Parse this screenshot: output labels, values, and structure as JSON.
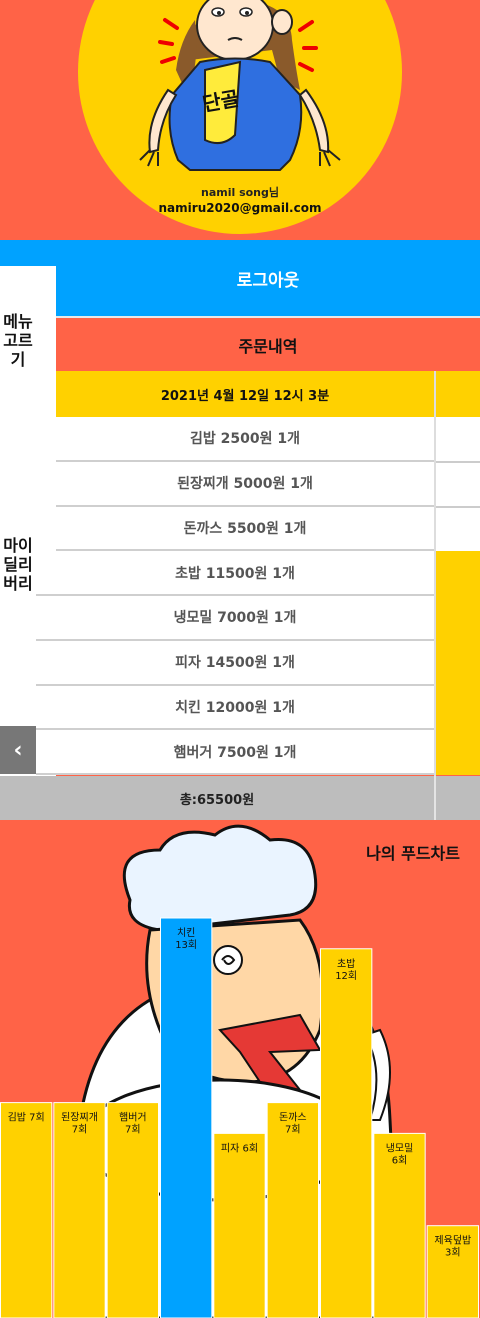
{
  "header": {
    "user_name": "namil song님",
    "user_email": "namiru2020@gmail.com",
    "badge_text": "단골"
  },
  "logout_label": "로그아웃",
  "sidebar": {
    "menu_label": "메뉴고르기",
    "delivery_label": "마이딜리버리",
    "back_icon": "chevron-left-icon"
  },
  "orders": {
    "title": "주문내역",
    "date": "2021년 4월 12일  12시 3분",
    "items": [
      "김밥 2500원 1개",
      "된장찌개 5000원 1개",
      "돈까스 5500원 1개",
      "초밥 11500원 1개",
      "냉모밀 7000원 1개",
      "피자 14500원 1개",
      "치킨 12000원 1개",
      "햄버거 7500원 1개"
    ],
    "total": "총:65500원"
  },
  "chart_data": {
    "type": "bar",
    "title": "나의 푸드차트",
    "categories": [
      "김밥",
      "된장찌개",
      "햄버거",
      "치킨",
      "피자",
      "돈까스",
      "초밥",
      "냉모밀",
      "제육덮밥"
    ],
    "values": [
      7,
      7,
      7,
      13,
      6,
      7,
      12,
      6,
      3
    ],
    "labels": [
      "김밥 7회",
      "된장찌개 7회",
      "햄버거 7회",
      "치킨 13회",
      "피자 6회",
      "돈까스 7회",
      "초밥 12회",
      "냉모밀 6회",
      "제육덮밥 3회"
    ],
    "colors": {
      "default": "#ffd100",
      "highlight": "#00a2ff",
      "highlight_index": 3
    },
    "ylim": [
      0,
      13
    ]
  },
  "colors": {
    "primary_red": "#ff6347",
    "primary_yellow": "#ffd100",
    "primary_blue": "#00a2ff"
  }
}
